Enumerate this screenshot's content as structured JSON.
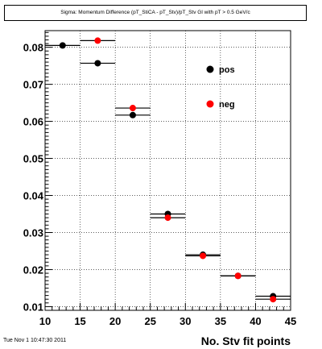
{
  "chart_data": {
    "type": "scatter",
    "title": "Sigma: Momentum Difference (pT_StiCA - pT_Stv)/pT_Stv Gl with pT > 0.5 GeV/c",
    "xlabel": "No. Stv fit points",
    "ylabel": "",
    "xlim": [
      10,
      45
    ],
    "ylim": [
      0.009,
      0.0845
    ],
    "x_ticks": [
      "10",
      "15",
      "20",
      "25",
      "30",
      "35",
      "40",
      "45"
    ],
    "y_ticks": [
      "0.01",
      "0.02",
      "0.03",
      "0.04",
      "0.05",
      "0.06",
      "0.07",
      "0.08"
    ],
    "grid": true,
    "legend_position": "top-right",
    "series": [
      {
        "name": "pos",
        "color": "#000000",
        "points": [
          {
            "x": 12.5,
            "y": 0.0805,
            "xerr": 2.5
          },
          {
            "x": 17.5,
            "y": 0.0757,
            "xerr": 2.5
          },
          {
            "x": 22.5,
            "y": 0.0617,
            "xerr": 2.5
          },
          {
            "x": 27.5,
            "y": 0.035,
            "xerr": 2.5
          },
          {
            "x": 32.5,
            "y": 0.024,
            "xerr": 2.5
          },
          {
            "x": 37.5,
            "y": 0.0183,
            "xerr": 2.5
          },
          {
            "x": 42.5,
            "y": 0.0128,
            "xerr": 2.5
          }
        ]
      },
      {
        "name": "neg",
        "color": "#ff0000",
        "points": [
          {
            "x": 17.5,
            "y": 0.0818,
            "xerr": 2.5
          },
          {
            "x": 22.5,
            "y": 0.0636,
            "xerr": 2.5
          },
          {
            "x": 27.5,
            "y": 0.034,
            "xerr": 2.5
          },
          {
            "x": 32.5,
            "y": 0.0237,
            "xerr": 2.5
          },
          {
            "x": 37.5,
            "y": 0.0183,
            "xerr": 2.5
          },
          {
            "x": 42.5,
            "y": 0.012,
            "xerr": 2.5
          }
        ]
      }
    ]
  },
  "timestamp": "Tue Nov  1 10:47:30 2011"
}
